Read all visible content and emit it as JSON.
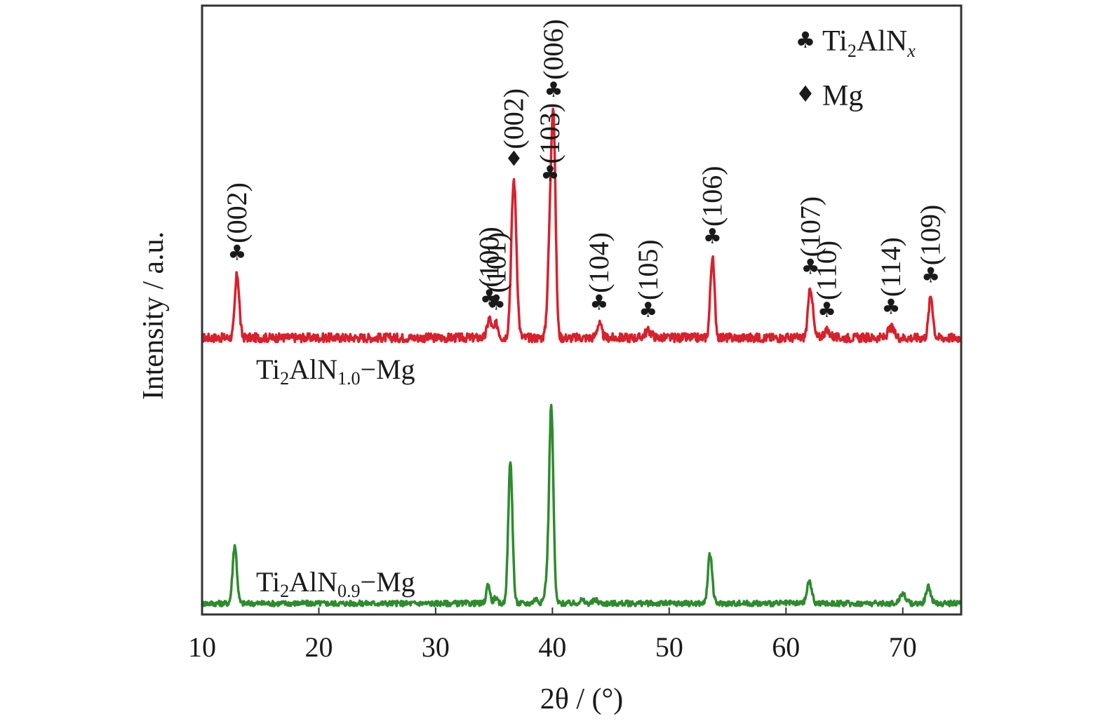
{
  "chart_data": {
    "type": "line",
    "xlabel": "2θ / (°)",
    "ylabel": "Intensity / a.u.",
    "xlim": [
      10,
      75
    ],
    "xticks": [
      10,
      20,
      30,
      40,
      50,
      60,
      70
    ],
    "ylim": [
      0,
      110
    ],
    "grid": false,
    "legend": {
      "placement": "top-right",
      "entries": [
        {
          "symbol": "club-icon",
          "label": "Ti",
          "sub": "2",
          "label2": "AlN",
          "italic_sub": "x"
        },
        {
          "symbol": "diamond-icon",
          "label": "Mg"
        }
      ]
    },
    "series": [
      {
        "id": "ti2aln10",
        "label_main": "Ti",
        "label_sub1": "2",
        "label_mid": "AlN",
        "label_sub2": "1.0",
        "label_tail": "−Mg",
        "color": "#d8212c",
        "baseline": 50,
        "noise": 0.8,
        "peaks": [
          {
            "x": 13.0,
            "h": 11.5,
            "w": 0.18
          },
          {
            "x": 34.6,
            "h": 3.5,
            "w": 0.18
          },
          {
            "x": 35.2,
            "h": 2.5,
            "w": 0.18
          },
          {
            "x": 36.7,
            "h": 28.5,
            "w": 0.22
          },
          {
            "x": 39.8,
            "h": 17.0,
            "w": 0.2
          },
          {
            "x": 40.1,
            "h": 35.5,
            "w": 0.18
          },
          {
            "x": 44.0,
            "h": 2.5,
            "w": 0.2
          },
          {
            "x": 48.2,
            "h": 1.2,
            "w": 0.3
          },
          {
            "x": 53.7,
            "h": 14.5,
            "w": 0.18
          },
          {
            "x": 62.1,
            "h": 9.0,
            "w": 0.2
          },
          {
            "x": 63.5,
            "h": 1.2,
            "w": 0.3
          },
          {
            "x": 69.0,
            "h": 1.8,
            "w": 0.25
          },
          {
            "x": 72.4,
            "h": 7.5,
            "w": 0.18
          }
        ]
      },
      {
        "id": "ti2aln09",
        "label_main": "Ti",
        "label_sub1": "2",
        "label_mid": "AlN",
        "label_sub2": "0.9",
        "label_tail": "−Mg",
        "color": "#2e8b2e",
        "baseline": 2,
        "noise": 0.5,
        "peaks": [
          {
            "x": 12.8,
            "h": 10.5,
            "w": 0.18
          },
          {
            "x": 34.5,
            "h": 3.5,
            "w": 0.15
          },
          {
            "x": 35.1,
            "h": 1.0,
            "w": 0.15
          },
          {
            "x": 36.4,
            "h": 25.5,
            "w": 0.18
          },
          {
            "x": 38.6,
            "h": 0.8,
            "w": 0.2
          },
          {
            "x": 39.5,
            "h": 3.0,
            "w": 0.18
          },
          {
            "x": 39.9,
            "h": 35.5,
            "w": 0.18
          },
          {
            "x": 42.5,
            "h": 0.6,
            "w": 0.2
          },
          {
            "x": 43.7,
            "h": 0.6,
            "w": 0.2
          },
          {
            "x": 53.5,
            "h": 9.0,
            "w": 0.18
          },
          {
            "x": 62.0,
            "h": 4.0,
            "w": 0.2
          },
          {
            "x": 70.0,
            "h": 1.8,
            "w": 0.25
          },
          {
            "x": 72.2,
            "h": 3.0,
            "w": 0.2
          }
        ]
      }
    ],
    "annotations": [
      {
        "x": 13.0,
        "marker": "club",
        "label": "(002)"
      },
      {
        "x": 34.6,
        "marker": "club",
        "label": "(100)"
      },
      {
        "x": 35.2,
        "marker": "club",
        "label": "(101)"
      },
      {
        "x": 36.7,
        "marker": "diamond",
        "label": "(002)"
      },
      {
        "x": 39.8,
        "marker": "club",
        "label": "(103)"
      },
      {
        "x": 40.1,
        "marker": "club",
        "label": "(006)"
      },
      {
        "x": 44.0,
        "marker": "club",
        "label": "(104)"
      },
      {
        "x": 48.2,
        "marker": "club",
        "label": "(105)"
      },
      {
        "x": 53.7,
        "marker": "club",
        "label": "(106)"
      },
      {
        "x": 62.1,
        "marker": "club",
        "label": "(107)"
      },
      {
        "x": 63.5,
        "marker": "club",
        "label": "(110)"
      },
      {
        "x": 69.0,
        "marker": "club",
        "label": "(114)"
      },
      {
        "x": 72.4,
        "marker": "club",
        "label": "(109)"
      }
    ]
  }
}
